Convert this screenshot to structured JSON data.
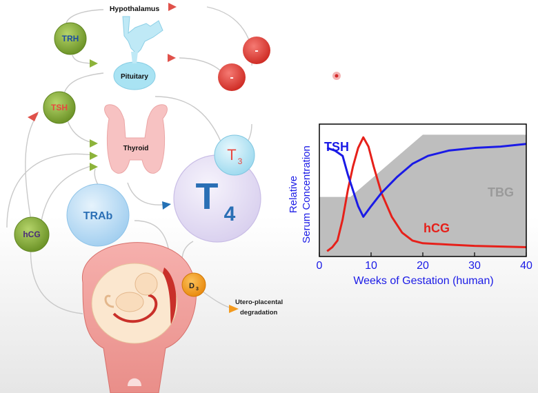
{
  "diagram": {
    "nodes": {
      "hypothalamus": "Hypothalamus",
      "pituitary": "Pituitary",
      "thyroid": "Thyroid",
      "trh": "TRH",
      "tsh": "TSH",
      "hcg": "hCG",
      "trab": "TRAb",
      "t3_base": "T",
      "t3_sub": "3",
      "t4_base": "T",
      "t4_sub": "4",
      "d3_base": "D",
      "d3_sub": "3",
      "neg1": "-",
      "neg2": "-",
      "degradation_line1": "Utero-placental",
      "degradation_line2": "degradation"
    },
    "colors": {
      "green_node": "#8db33a",
      "red_node": "#e8473f",
      "pituitary_blue": "#a9e3f3",
      "thyroid_pink": "#f7c2c2",
      "t4_lavender": "#e6e0f4",
      "trab_blue": "#b9dcf4",
      "d3_orange": "#f39a1e"
    }
  },
  "chart_data": {
    "type": "line",
    "xlabel": "Weeks of Gestation (human)",
    "ylabel_line1": "Relative",
    "ylabel_line2": "Serum Concentration",
    "xlim": [
      0,
      40
    ],
    "ylim": [
      0,
      1
    ],
    "xticks": [
      0,
      10,
      20,
      30,
      40
    ],
    "series": [
      {
        "name": "TSH",
        "color": "#1a1ae6",
        "x": [
          1.5,
          3,
          4.5,
          5.5,
          6.5,
          7.5,
          8.5,
          10,
          12,
          15,
          18,
          21,
          25,
          30,
          35,
          40
        ],
        "y": [
          0.82,
          0.8,
          0.76,
          0.62,
          0.5,
          0.38,
          0.3,
          0.38,
          0.48,
          0.6,
          0.7,
          0.76,
          0.8,
          0.82,
          0.83,
          0.85
        ]
      },
      {
        "name": "hCG",
        "color": "#e6201a",
        "x": [
          1.5,
          2.5,
          3.5,
          4.5,
          5.5,
          6.5,
          7.5,
          8.5,
          9.5,
          10.5,
          12,
          14,
          16,
          18,
          20,
          25,
          30,
          40
        ],
        "y": [
          0.04,
          0.07,
          0.12,
          0.28,
          0.5,
          0.68,
          0.82,
          0.9,
          0.83,
          0.68,
          0.48,
          0.3,
          0.18,
          0.12,
          0.1,
          0.09,
          0.08,
          0.07
        ]
      },
      {
        "name": "TBG",
        "color": "#bebebe",
        "x": [
          0,
          6,
          20,
          40
        ],
        "y": [
          0.45,
          0.45,
          0.92,
          0.92
        ]
      }
    ]
  }
}
